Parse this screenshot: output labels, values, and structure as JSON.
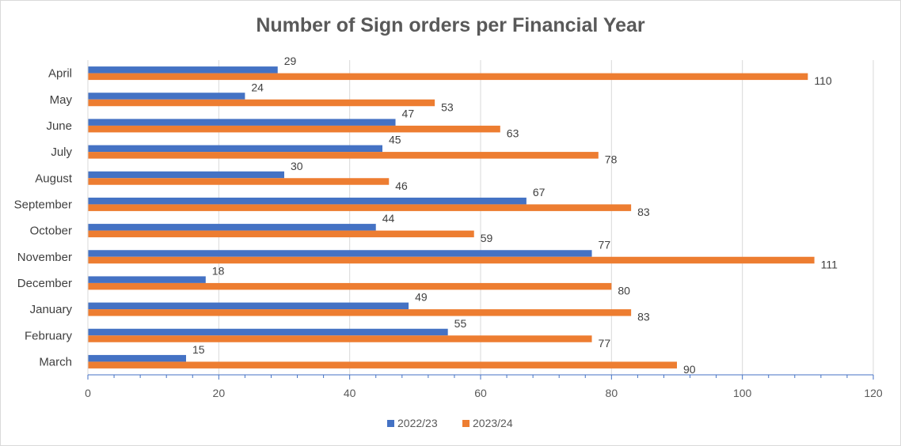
{
  "chart_data": {
    "type": "bar",
    "orientation": "horizontal",
    "title": "Number of Sign orders per Financial Year",
    "categories": [
      "April",
      "May",
      "June",
      "July",
      "August",
      "September",
      "October",
      "November",
      "December",
      "January",
      "February",
      "March"
    ],
    "series": [
      {
        "name": "2022/23",
        "color": "#4472c4",
        "values": [
          29,
          24,
          47,
          45,
          30,
          67,
          44,
          77,
          18,
          49,
          55,
          15
        ]
      },
      {
        "name": "2023/24",
        "color": "#ed7d31",
        "values": [
          110,
          53,
          63,
          78,
          46,
          83,
          59,
          111,
          80,
          83,
          77,
          90
        ]
      }
    ],
    "xlim": [
      0,
      120
    ],
    "xticks": [
      0,
      20,
      40,
      60,
      80,
      100,
      120
    ],
    "grid": true,
    "data_labels": true,
    "legend": {
      "position": "bottom"
    }
  }
}
